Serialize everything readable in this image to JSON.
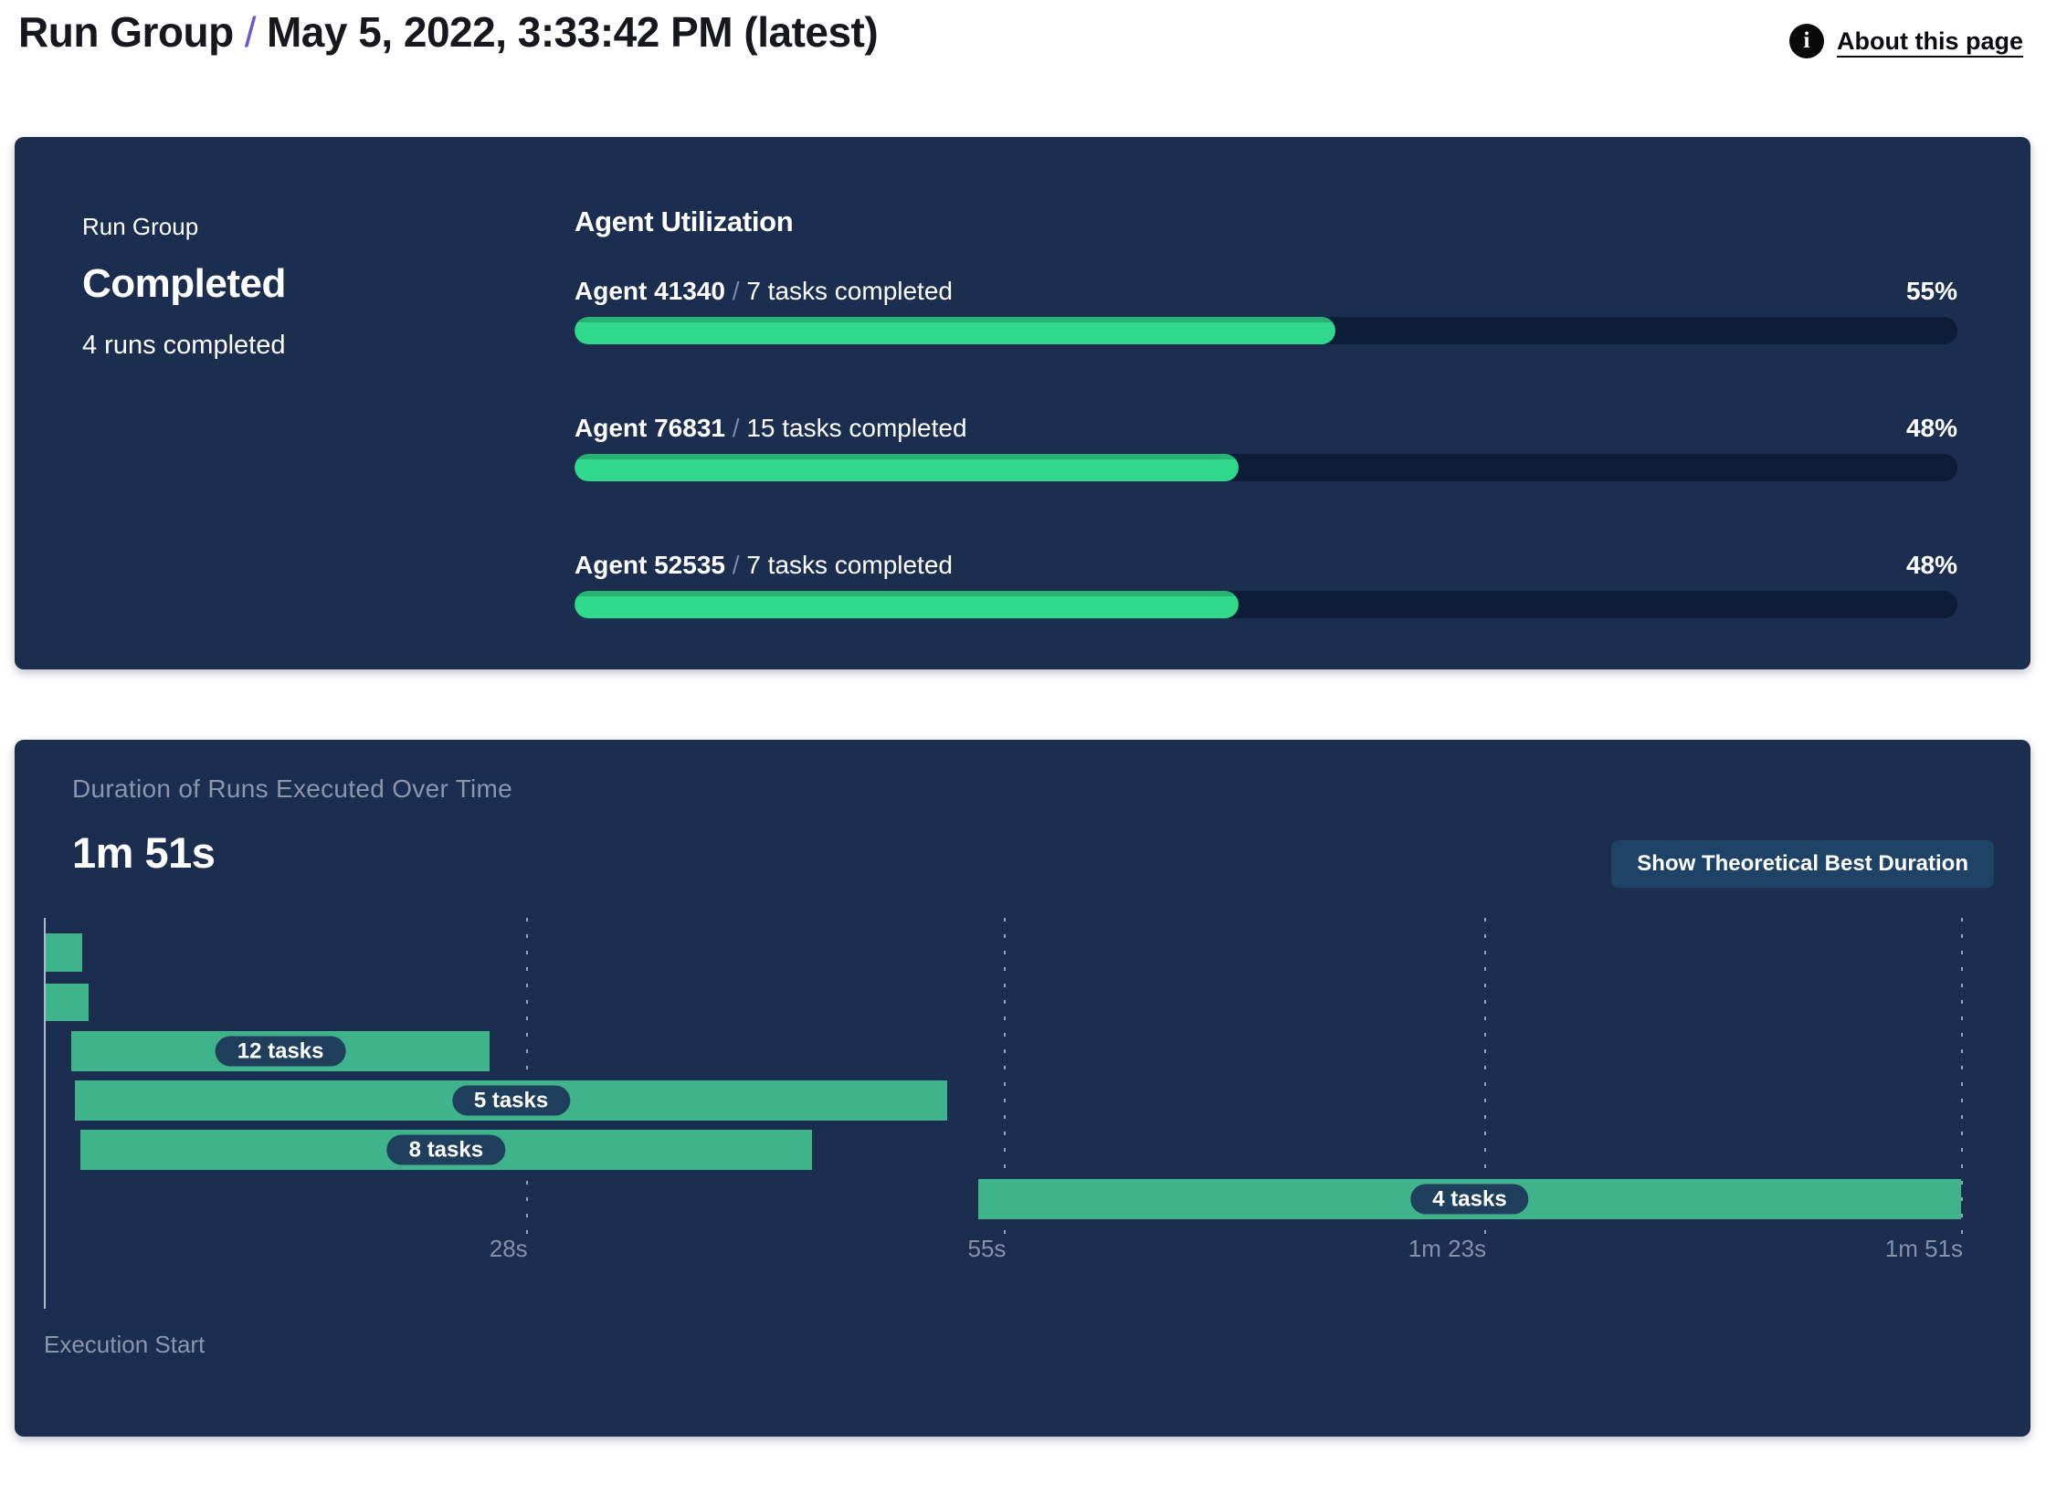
{
  "header": {
    "title": "Run Group",
    "separator": "/",
    "subtitle": "May 5, 2022, 3:33:42 PM (latest)",
    "about_label": "About this page",
    "info_icon": "i"
  },
  "summary": {
    "eyebrow": "Run Group",
    "status": "Completed",
    "runs_completed": "4 runs completed",
    "agent_utilization_title": "Agent Utilization",
    "agents": [
      {
        "name": "Agent 41340",
        "separator": "/",
        "tasks": "7 tasks completed",
        "percent": 55
      },
      {
        "name": "Agent 76831",
        "separator": "/",
        "tasks": "15 tasks completed",
        "percent": 48
      },
      {
        "name": "Agent 52535",
        "separator": "/",
        "tasks": "7 tasks completed",
        "percent": 48
      }
    ]
  },
  "duration_panel": {
    "button_label": "Show Theoretical Best Duration"
  },
  "chart_data": {
    "type": "gantt",
    "title": "Duration of Runs Executed Over Time",
    "total_duration_label": "1m 51s",
    "axis_label": "Execution Start",
    "time_axis": {
      "start_s": 0,
      "end_s": 110.5,
      "ticks": [
        {
          "label": "28s",
          "s": 27.7
        },
        {
          "label": "55s",
          "s": 55.3
        },
        {
          "label": "1m 23s",
          "s": 83.0
        },
        {
          "label": "1m 51s",
          "s": 110.5
        }
      ]
    },
    "runs": [
      {
        "label": null,
        "start_s": 0,
        "end_s": 2.1
      },
      {
        "label": null,
        "start_s": 0,
        "end_s": 2.5
      },
      {
        "label": "12 tasks",
        "start_s": 1.5,
        "end_s": 25.6
      },
      {
        "label": "5 tasks",
        "start_s": 1.7,
        "end_s": 52.0
      },
      {
        "label": "8 tasks",
        "start_s": 2.0,
        "end_s": 44.2
      },
      {
        "label": "4 tasks",
        "start_s": 53.8,
        "end_s": 110.5
      }
    ],
    "colors": {
      "bar": "#3fb389",
      "label_pill": "#1f3f5c",
      "grid": "#97a3b9"
    }
  },
  "colors": {
    "panel_bg": "#1b2e50",
    "track": "#0d1d37",
    "progress_green": "#2fd88a",
    "gantt_green": "#3fb389",
    "accent_purple": "#6e56cf",
    "muted_text": "#8b96ad",
    "button_bg": "#1e4367"
  }
}
